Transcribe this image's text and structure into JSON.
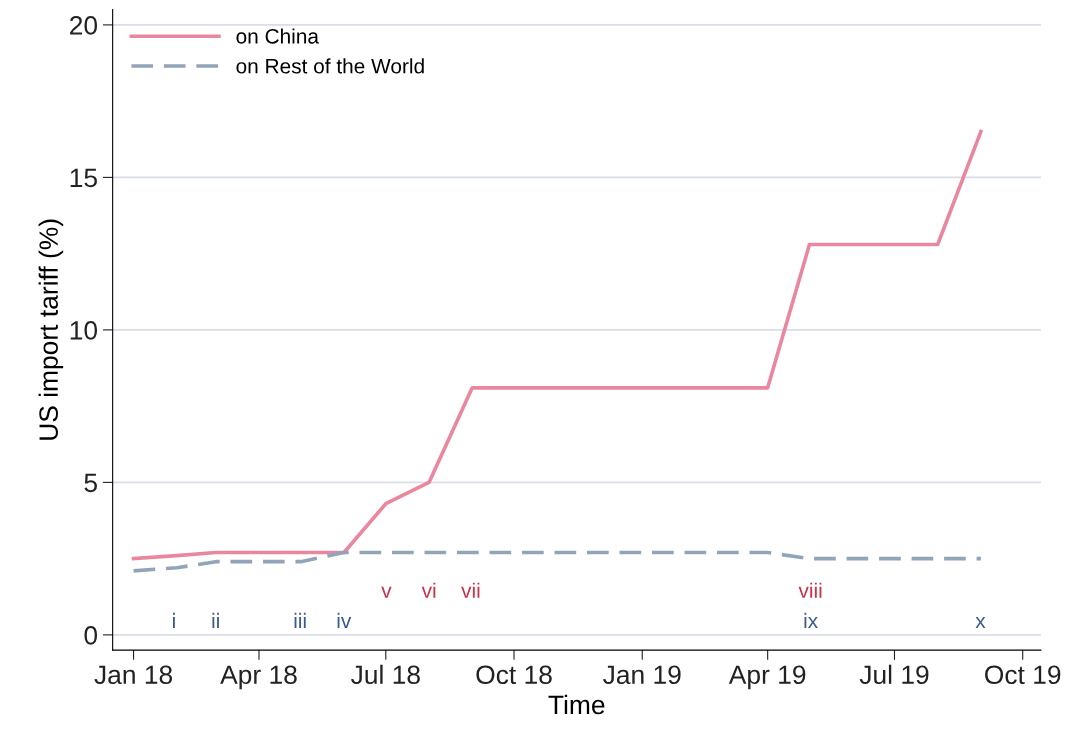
{
  "chart_data": {
    "type": "line",
    "xlabel": "Time",
    "ylabel": "US import tariff (%)",
    "x": [
      "2018-01-01",
      "2018-02-01",
      "2018-03-01",
      "2018-04-01",
      "2018-05-01",
      "2018-06-01",
      "2018-07-01",
      "2018-08-01",
      "2018-09-01",
      "2018-10-01",
      "2018-11-01",
      "2018-12-01",
      "2019-01-01",
      "2019-02-01",
      "2019-03-01",
      "2019-04-01",
      "2019-05-01",
      "2019-06-01",
      "2019-07-01",
      "2019-08-01",
      "2019-09-01"
    ],
    "series": [
      {
        "name": "on China",
        "color": "#e8879d",
        "line_style": "solid",
        "values": [
          2.5,
          2.6,
          2.7,
          2.7,
          2.7,
          2.7,
          4.3,
          5.0,
          8.1,
          8.1,
          8.1,
          8.1,
          8.1,
          8.1,
          8.1,
          8.1,
          12.8,
          12.8,
          12.8,
          12.8,
          16.5
        ]
      },
      {
        "name": "on Rest of the World",
        "color": "#91a4b8",
        "line_style": "dashed",
        "values": [
          2.1,
          2.2,
          2.4,
          2.4,
          2.4,
          2.7,
          2.7,
          2.7,
          2.7,
          2.7,
          2.7,
          2.7,
          2.7,
          2.7,
          2.7,
          2.7,
          2.5,
          2.5,
          2.5,
          2.5,
          2.5
        ]
      }
    ],
    "xlim": [
      "2017-12-17",
      "2019-10-14"
    ],
    "xticks": [
      {
        "value": "2018-01-01",
        "label": "Jan 18"
      },
      {
        "value": "2018-04-01",
        "label": "Apr 18"
      },
      {
        "value": "2018-07-01",
        "label": "Jul 18"
      },
      {
        "value": "2018-10-01",
        "label": "Oct 18"
      },
      {
        "value": "2019-01-01",
        "label": "Jan 19"
      },
      {
        "value": "2019-04-01",
        "label": "Apr 19"
      },
      {
        "value": "2019-07-01",
        "label": "Jul 19"
      },
      {
        "value": "2019-10-01",
        "label": "Oct 19"
      }
    ],
    "ylim": [
      -0.5,
      20.5
    ],
    "yticks": [
      0,
      5,
      10,
      15,
      20
    ],
    "grid": "y",
    "legend": "top left",
    "marker": "none",
    "annotations": [
      "i",
      "ii",
      "iii",
      "iv",
      "v",
      "vi",
      "vii",
      "viii",
      "ix",
      "x"
    ]
  }
}
